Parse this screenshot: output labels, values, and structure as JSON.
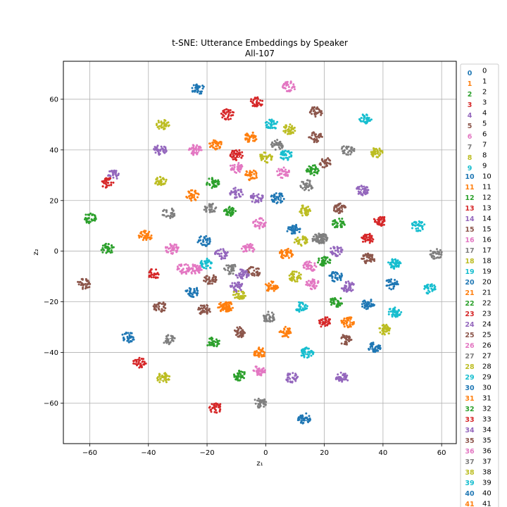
{
  "chart_data": {
    "type": "scatter",
    "title": "t-SNE: Utterance Embeddings by Speaker",
    "subtitle": "All-107",
    "xlabel": "z₁",
    "ylabel": "z₂",
    "xlim": [
      -69,
      65
    ],
    "ylim": [
      -76,
      75
    ],
    "xticks": [
      -60,
      -40,
      -20,
      0,
      20,
      40,
      60
    ],
    "yticks": [
      -60,
      -40,
      -20,
      0,
      20,
      40,
      60
    ],
    "grid": true,
    "legend_position": "right, outside plot",
    "palette": [
      "#1f77b4",
      "#ff7f0e",
      "#2ca02c",
      "#d62728",
      "#9467bd",
      "#8c564b",
      "#e377c2",
      "#7f7f7f",
      "#bcbd22",
      "#17becf"
    ],
    "legend": [
      "0",
      "1",
      "2",
      "3",
      "4",
      "5",
      "6",
      "7",
      "8",
      "9",
      "10",
      "11",
      "12",
      "13",
      "14",
      "15",
      "16",
      "17",
      "18",
      "19",
      "20",
      "21",
      "22",
      "23",
      "24",
      "25",
      "26",
      "27",
      "28",
      "29",
      "30",
      "31",
      "32",
      "33",
      "34",
      "35",
      "36",
      "37",
      "38",
      "39",
      "40",
      "41"
    ],
    "clusters": [
      {
        "label": "0",
        "x": 9.5,
        "y": 8.5,
        "color": 0
      },
      {
        "label": "1",
        "x": 7,
        "y": -1,
        "color": 1
      },
      {
        "label": "2",
        "x": 20,
        "y": -4,
        "color": 2
      },
      {
        "label": "3",
        "x": 35,
        "y": 5,
        "color": 3
      },
      {
        "label": "4",
        "x": -8,
        "y": -9,
        "color": 4
      },
      {
        "label": "5",
        "x": 35,
        "y": -3,
        "color": 5
      },
      {
        "label": "6",
        "x": 15,
        "y": -6,
        "color": 6
      },
      {
        "label": "7",
        "x": 19,
        "y": 5,
        "color": 7
      },
      {
        "label": "8",
        "x": 41,
        "y": -31,
        "color": 8
      },
      {
        "label": "9",
        "x": 44,
        "y": -5,
        "color": 9
      },
      {
        "label": "10",
        "x": 13,
        "y": -66,
        "color": 0
      },
      {
        "label": "11",
        "x": 2,
        "y": -14,
        "color": 1
      },
      {
        "label": "12",
        "x": 25,
        "y": 11,
        "color": 2
      },
      {
        "label": "13",
        "x": 39,
        "y": 12,
        "color": 3
      },
      {
        "label": "14",
        "x": 28,
        "y": -14,
        "color": 4
      },
      {
        "label": "15",
        "x": 25,
        "y": 17,
        "color": 5
      },
      {
        "label": "16",
        "x": -24,
        "y": -7,
        "color": 6
      },
      {
        "label": "17",
        "x": 14,
        "y": 26,
        "color": 7
      },
      {
        "label": "18",
        "x": 13,
        "y": 16,
        "color": 8
      },
      {
        "label": "19",
        "x": 44,
        "y": -24,
        "color": 9
      },
      {
        "label": "20",
        "x": 4,
        "y": 21,
        "color": 0
      },
      {
        "label": "21",
        "x": -14,
        "y": -22,
        "color": 1
      },
      {
        "label": "22",
        "x": -12,
        "y": 16,
        "color": 2
      },
      {
        "label": "23",
        "x": -10,
        "y": 38,
        "color": 3
      },
      {
        "label": "24",
        "x": 33,
        "y": 24,
        "color": 4
      },
      {
        "label": "25",
        "x": -21,
        "y": -23,
        "color": 5
      },
      {
        "label": "26",
        "x": -2,
        "y": -47,
        "color": 6
      },
      {
        "label": "27",
        "x": -33,
        "y": -35,
        "color": 7
      },
      {
        "label": "28",
        "x": -35,
        "y": -50,
        "color": 8
      },
      {
        "label": "29",
        "x": 34,
        "y": 52,
        "color": 9
      },
      {
        "label": "30",
        "x": 35,
        "y": -21,
        "color": 0
      },
      {
        "label": "31",
        "x": -13,
        "y": -22,
        "color": 1
      },
      {
        "label": "32",
        "x": 16,
        "y": 32,
        "color": 2
      },
      {
        "label": "33",
        "x": 20,
        "y": -28,
        "color": 3
      },
      {
        "label": "34",
        "x": 26,
        "y": -50,
        "color": 4
      },
      {
        "label": "35",
        "x": -9,
        "y": -32,
        "color": 5
      },
      {
        "label": "36",
        "x": -24,
        "y": 40,
        "color": 6
      },
      {
        "label": "37",
        "x": 18,
        "y": 5,
        "color": 7
      },
      {
        "label": "38",
        "x": 38,
        "y": 39,
        "color": 8
      },
      {
        "label": "39",
        "x": 14,
        "y": -40,
        "color": 9
      },
      {
        "label": "40",
        "x": 37,
        "y": -38,
        "color": 0
      },
      {
        "label": "41",
        "x": 28,
        "y": -28,
        "color": 1
      }
    ],
    "extra_clusters": [
      [
        -23,
        64,
        0
      ],
      [
        8,
        65,
        6
      ],
      [
        -3,
        59,
        3
      ],
      [
        -13,
        54,
        3
      ],
      [
        17,
        55,
        5
      ],
      [
        -35,
        50,
        8
      ],
      [
        2,
        50,
        9
      ],
      [
        -5,
        45,
        1
      ],
      [
        17,
        45,
        5
      ],
      [
        -17,
        42,
        1
      ],
      [
        -36,
        40,
        4
      ],
      [
        4,
        42,
        7
      ],
      [
        8,
        48,
        8
      ],
      [
        0,
        37,
        8
      ],
      [
        7,
        38,
        9
      ],
      [
        28,
        40,
        7
      ],
      [
        -10,
        33,
        6
      ],
      [
        -5,
        30,
        1
      ],
      [
        20,
        35,
        5
      ],
      [
        6,
        31,
        6
      ],
      [
        -52,
        30,
        4
      ],
      [
        -54,
        27,
        3
      ],
      [
        -36,
        28,
        8
      ],
      [
        -25,
        22,
        1
      ],
      [
        -18,
        27,
        2
      ],
      [
        -10,
        23,
        4
      ],
      [
        -3,
        21,
        4
      ],
      [
        -60,
        13,
        2
      ],
      [
        -33,
        15,
        7
      ],
      [
        -19,
        17,
        7
      ],
      [
        -2,
        11,
        6
      ],
      [
        -41,
        6,
        1
      ],
      [
        -21,
        4,
        0
      ],
      [
        -54,
        1,
        2
      ],
      [
        -32,
        1,
        6
      ],
      [
        -15,
        -1,
        4
      ],
      [
        -6,
        1,
        6
      ],
      [
        12,
        4,
        8
      ],
      [
        24,
        0,
        4
      ],
      [
        58,
        -1,
        7
      ],
      [
        52,
        10,
        9
      ],
      [
        -38,
        -9,
        3
      ],
      [
        -28,
        -7,
        6
      ],
      [
        -20,
        -5,
        9
      ],
      [
        -19,
        -11,
        5
      ],
      [
        -12,
        -7,
        7
      ],
      [
        -9,
        -17,
        8
      ],
      [
        10,
        -10,
        8
      ],
      [
        24,
        -10,
        0
      ],
      [
        16,
        -13,
        6
      ],
      [
        -62,
        -13,
        5
      ],
      [
        -25,
        -16,
        0
      ],
      [
        -10,
        -14,
        4
      ],
      [
        -36,
        -22,
        5
      ],
      [
        1,
        -26,
        7
      ],
      [
        12,
        -22,
        9
      ],
      [
        24,
        -20,
        2
      ],
      [
        43,
        -13,
        0
      ],
      [
        56,
        -15,
        9
      ],
      [
        -47,
        -34,
        0
      ],
      [
        7,
        -32,
        1
      ],
      [
        27,
        -35,
        5
      ],
      [
        -18,
        -36,
        2
      ],
      [
        -2,
        -40,
        1
      ],
      [
        -43,
        -44,
        3
      ],
      [
        -9,
        -49,
        2
      ],
      [
        9,
        -50,
        4
      ],
      [
        -17,
        -62,
        3
      ],
      [
        -2,
        -60,
        7
      ],
      [
        -4,
        -8,
        5
      ]
    ]
  }
}
